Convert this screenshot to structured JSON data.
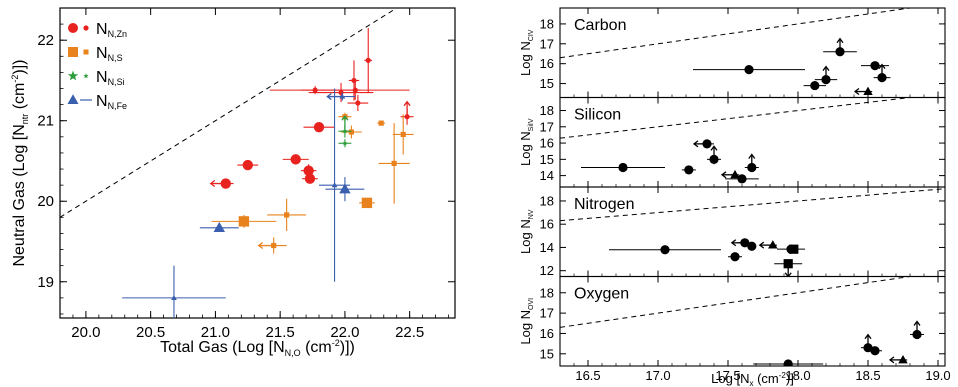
{
  "colors": {
    "zn": "#e8221f",
    "s": "#e8821d",
    "si": "#2a9d3a",
    "fe": "#3a5fae",
    "black": "#000000"
  },
  "chart_data": [
    {
      "type": "scatter",
      "xlabel_main": "Total Gas (Log [N",
      "xlabel_sub": "N,O",
      "xlabel_rest": " (cm",
      "xlabel_sup": "-2",
      "xlabel_end": ")])",
      "ylabel_main": "Neutral Gas (Log [N",
      "ylabel_sub": "ntr",
      "ylabel_rest": " (cm",
      "ylabel_sup": "-2",
      "ylabel_end": ")])",
      "xlim": [
        19.8,
        22.85
      ],
      "ylim": [
        18.55,
        22.4
      ],
      "xticks": [
        "20.0",
        "20.5",
        "21.0",
        "21.5",
        "22.0",
        "22.5"
      ],
      "yticks": [
        "19",
        "20",
        "21",
        "22"
      ],
      "xtick_values": [
        20.0,
        20.5,
        21.0,
        21.5,
        22.0,
        22.5
      ],
      "ytick_values": [
        19,
        20,
        21,
        22
      ],
      "one_to_one_line": true,
      "legend_position": "top-left",
      "legend": [
        {
          "key": "zn",
          "marker": "circle",
          "main": "N",
          "sub": "N,Zn"
        },
        {
          "key": "s",
          "marker": "square",
          "main": "N",
          "sub": "N,S"
        },
        {
          "key": "si",
          "marker": "star",
          "main": "N",
          "sub": "N,Si"
        },
        {
          "key": "fe",
          "marker": "triangle",
          "main": "N",
          "sub": "N,Fe"
        }
      ],
      "series": [
        {
          "key": "zn",
          "points": [
            {
              "x": 21.25,
              "y": 20.45,
              "xerr": 0.08,
              "yerr": 0.04,
              "big": true
            },
            {
              "x": 21.08,
              "y": 20.22,
              "xerr": 0.06,
              "yerr": 0.04,
              "big": true,
              "arrow": "left"
            },
            {
              "x": 21.62,
              "y": 20.52,
              "xerr": 0.1,
              "yerr": 0.04,
              "big": true
            },
            {
              "x": 21.72,
              "y": 20.38,
              "xerr": 0.06,
              "yerr": 0.08,
              "big": true
            },
            {
              "x": 21.73,
              "y": 20.28,
              "xerr": 0.06,
              "yerr": 0.04,
              "big": true
            },
            {
              "x": 21.8,
              "y": 20.92,
              "xerr": 0.12,
              "yerr": 0.06,
              "big": true
            },
            {
              "x": 21.77,
              "y": 21.38,
              "xerr": 0.35,
              "yerr": 0.05
            },
            {
              "x": 21.97,
              "y": 21.35,
              "xerr": 0.25,
              "yerr": 0.12
            },
            {
              "x": 22.08,
              "y": 21.38,
              "xerr": 0.42,
              "yerr": 0.12
            },
            {
              "x": 22.1,
              "y": 21.22,
              "xerr": 0.08,
              "yerr": 0.1
            },
            {
              "x": 22.07,
              "y": 21.5,
              "xerr": 0.04,
              "yerr": 0.25
            },
            {
              "x": 22.18,
              "y": 21.75,
              "xerr": 0.03,
              "yerr": 0.4
            },
            {
              "x": 22.48,
              "y": 21.05,
              "xerr": 0.05,
              "yerr": 0.1,
              "arrow": "up"
            }
          ]
        },
        {
          "key": "s",
          "points": [
            {
              "x": 21.22,
              "y": 19.75,
              "xerr": 0.25,
              "yerr": 0.08,
              "big": true
            },
            {
              "x": 21.55,
              "y": 19.83,
              "xerr": 0.15,
              "yerr": 0.2
            },
            {
              "x": 21.45,
              "y": 19.45,
              "xerr": 0.1,
              "yerr": 0.1,
              "arrow": "left"
            },
            {
              "x": 22.17,
              "y": 19.98,
              "xerr": 0.06,
              "yerr": 0.05,
              "big": true
            },
            {
              "x": 22.38,
              "y": 20.47,
              "xerr": 0.12,
              "yerr": 0.5
            },
            {
              "x": 22.45,
              "y": 20.83,
              "xerr": 0.08,
              "yerr": 0.25
            },
            {
              "x": 22.28,
              "y": 20.97,
              "xerr": 0.03,
              "yerr": 0.03
            },
            {
              "x": 22.05,
              "y": 20.86,
              "xerr": 0.08,
              "yerr": 0.08
            },
            {
              "x": 22.0,
              "y": 21.05,
              "xerr": 0.05,
              "yerr": 0.05
            }
          ]
        },
        {
          "key": "si",
          "points": [
            {
              "x": 22.0,
              "y": 20.72,
              "xerr": 0.05,
              "yerr": 0.05
            },
            {
              "x": 22.0,
              "y": 20.87,
              "xerr": 0.05,
              "yerr": 0.08,
              "arrow": "up"
            }
          ]
        },
        {
          "key": "fe",
          "points": [
            {
              "x": 21.03,
              "y": 19.67,
              "xerr": 0.15,
              "yerr": 0.05,
              "big": true
            },
            {
              "x": 20.68,
              "y": 18.8,
              "xerr": 0.4,
              "yerr": 0.4
            },
            {
              "x": 21.92,
              "y": 20.2,
              "xerr": 0.12,
              "yerr": 1.2
            },
            {
              "x": 22.0,
              "y": 20.15,
              "xerr": 0.15,
              "yerr": 0.15,
              "big": true
            },
            {
              "x": 21.98,
              "y": 21.3,
              "xerr": 0.1,
              "yerr": 0.05,
              "arrow": "left"
            }
          ]
        }
      ]
    },
    {
      "type": "scatter",
      "xlabel_main": "Log [N",
      "xlabel_sub": "x",
      "xlabel_rest": " (cm",
      "xlabel_sup": "-2",
      "xlabel_end": ")]",
      "xlim": [
        16.3,
        19.05
      ],
      "xticks": [
        "16.5",
        "17.0",
        "17.5",
        "18.0",
        "18.5",
        "19.0"
      ],
      "xtick_values": [
        16.5,
        17.0,
        17.5,
        18.0,
        18.5,
        19.0
      ],
      "panels": [
        {
          "name": "Carbon",
          "ylabel_main": "Log N",
          "ylabel_sub": "CIV",
          "ylim": [
            14.3,
            18.8
          ],
          "yticks": [
            "15",
            "16",
            "17",
            "18"
          ],
          "ytick_values": [
            15,
            16,
            17,
            18
          ],
          "points": [
            {
              "x": 17.65,
              "y": 15.7,
              "xerr": 0.4,
              "yerr": 0.2,
              "m": "circle"
            },
            {
              "x": 18.12,
              "y": 14.9,
              "xerr": 0.08,
              "m": "circle"
            },
            {
              "x": 18.2,
              "y": 15.2,
              "xerr": 0.08,
              "m": "circle",
              "arrow": "up"
            },
            {
              "x": 18.3,
              "y": 16.6,
              "xerr": 0.12,
              "m": "circle",
              "arrow": "up"
            },
            {
              "x": 18.55,
              "y": 15.9,
              "xerr": 0.1,
              "m": "circle"
            },
            {
              "x": 18.6,
              "y": 15.3,
              "xerr": 0.06,
              "m": "circle",
              "arrow": "up"
            },
            {
              "x": 18.5,
              "y": 14.6,
              "xerr": 0.03,
              "m": "triangle",
              "arrow": "left"
            }
          ]
        },
        {
          "name": "Silicon",
          "ylabel_main": "Log N",
          "ylabel_sub": "SiIV",
          "ylim": [
            13.3,
            18.8
          ],
          "yticks": [
            "14",
            "15",
            "16",
            "17",
            "18"
          ],
          "ytick_values": [
            14,
            15,
            16,
            17,
            18
          ],
          "points": [
            {
              "x": 16.75,
              "y": 14.5,
              "xerr": 0.3,
              "m": "circle"
            },
            {
              "x": 17.22,
              "y": 14.35,
              "xerr": 0.05,
              "m": "circle"
            },
            {
              "x": 17.35,
              "y": 15.95,
              "xerr": 0.05,
              "m": "circle",
              "arrow": "left"
            },
            {
              "x": 17.4,
              "y": 15.0,
              "xerr": 0.05,
              "yerr": 0.3,
              "m": "circle",
              "arrow": "up"
            },
            {
              "x": 17.6,
              "y": 13.8,
              "xerr": 0.12,
              "m": "circle"
            },
            {
              "x": 17.67,
              "y": 14.5,
              "xerr": 0.05,
              "m": "circle",
              "arrow": "up"
            },
            {
              "x": 17.55,
              "y": 14.05,
              "xerr": 0.03,
              "m": "triangle",
              "arrow": "left"
            }
          ]
        },
        {
          "name": "Nitrogen",
          "ylabel_main": "Log N",
          "ylabel_sub": "NV",
          "ylim": [
            11.5,
            19.2
          ],
          "yticks": [
            "12",
            "14",
            "16",
            "18"
          ],
          "ytick_values": [
            12,
            14,
            16,
            18
          ],
          "points": [
            {
              "x": 17.05,
              "y": 13.8,
              "xerr": 0.4,
              "m": "circle"
            },
            {
              "x": 17.55,
              "y": 13.2,
              "xerr": 0.05,
              "m": "circle"
            },
            {
              "x": 17.62,
              "y": 14.4,
              "xerr": 0.05,
              "m": "circle",
              "arrow": "left"
            },
            {
              "x": 17.67,
              "y": 14.1,
              "xerr": 0.03,
              "m": "circle"
            },
            {
              "x": 17.82,
              "y": 14.2,
              "xerr": 0.03,
              "m": "triangle",
              "arrow": "left"
            },
            {
              "x": 17.95,
              "y": 13.85,
              "xerr": 0.1,
              "m": "circle"
            },
            {
              "x": 17.97,
              "y": 13.85,
              "xerr": 0.03,
              "m": "square"
            },
            {
              "x": 17.93,
              "y": 12.6,
              "xerr": 0.1,
              "m": "square",
              "arrow": "down"
            }
          ]
        },
        {
          "name": "Oxygen",
          "ylabel_main": "Log N",
          "ylabel_sub": "OVI",
          "ylim": [
            14.4,
            18.8
          ],
          "yticks": [
            "15",
            "16",
            "17",
            "18"
          ],
          "ytick_values": [
            15,
            16,
            17,
            18
          ],
          "points": [
            {
              "x": 17.93,
              "y": 14.5,
              "xerr": 0.25,
              "m": "circle"
            },
            {
              "x": 18.5,
              "y": 15.3,
              "xerr": 0.05,
              "m": "circle",
              "arrow": "up"
            },
            {
              "x": 18.55,
              "y": 15.15,
              "xerr": 0.05,
              "m": "circle"
            },
            {
              "x": 18.85,
              "y": 15.95,
              "xerr": 0.05,
              "m": "circle",
              "arrow": "up"
            },
            {
              "x": 18.75,
              "y": 14.7,
              "xerr": 0.03,
              "m": "triangle",
              "arrow": "left"
            }
          ]
        }
      ]
    }
  ]
}
